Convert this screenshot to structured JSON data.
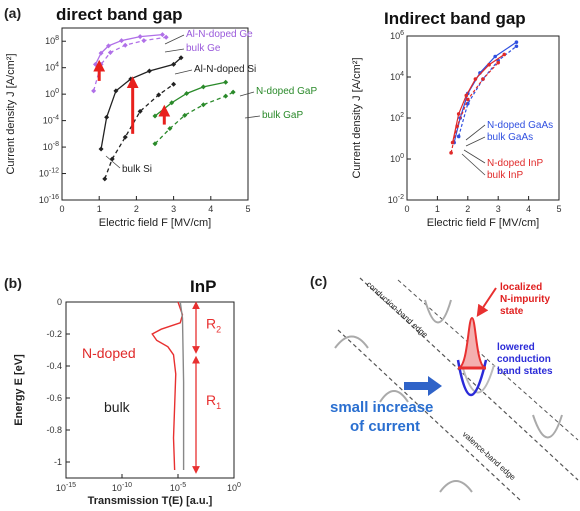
{
  "chart_data": [
    {
      "panel": "(a)",
      "title": "direct band gap",
      "type": "line",
      "xlabel": "Electric field F [MV/cm]",
      "ylabel": "Current density J [A/cm²]",
      "xlim": [
        0,
        5
      ],
      "ylim": [
        -16,
        10
      ],
      "yscale": "log",
      "xticks": [
        "0",
        "1",
        "2",
        "3",
        "4",
        "5"
      ],
      "yticks": [
        "10-16",
        "10-12",
        "10-8",
        "10-4",
        "100",
        "104",
        "108"
      ],
      "series": [
        {
          "name": "Al-N-doped Ge",
          "color": "#b070e8",
          "style": "solid",
          "x": [
            0.9,
            1.05,
            1.25,
            1.6,
            2.1,
            2.7
          ],
          "y": [
            4.5,
            6.2,
            7.3,
            8.1,
            8.7,
            9.0
          ]
        },
        {
          "name": "bulk Ge",
          "color": "#b070e8",
          "style": "dashed",
          "x": [
            0.85,
            1.05,
            1.3,
            1.7,
            2.2,
            2.8
          ],
          "y": [
            0.5,
            4.5,
            6.3,
            7.4,
            8.1,
            8.6
          ]
        },
        {
          "name": "Al-N-doped Si",
          "color": "#222222",
          "style": "solid",
          "x": [
            1.05,
            1.2,
            1.45,
            1.85,
            2.35,
            3.0,
            3.2
          ],
          "y": [
            -8.3,
            -3.5,
            0.5,
            2.3,
            3.5,
            4.5,
            5.5
          ]
        },
        {
          "name": "bulk Si",
          "color": "#222222",
          "style": "dashed",
          "x": [
            1.15,
            1.35,
            1.7,
            2.1,
            2.6,
            3.0
          ],
          "y": [
            -12.8,
            -9.8,
            -6.5,
            -2.6,
            -0.1,
            1.5
          ]
        },
        {
          "name": "N-doped GaP",
          "color": "#2a8a2a",
          "style": "solid",
          "x": [
            2.5,
            2.95,
            3.35,
            3.8,
            4.4
          ],
          "y": [
            -3.3,
            -1.3,
            0.1,
            1.1,
            1.8
          ]
        },
        {
          "name": "bulk GaP",
          "color": "#2a8a2a",
          "style": "dashed",
          "x": [
            2.5,
            2.9,
            3.3,
            3.8,
            4.4,
            4.6
          ],
          "y": [
            -7.5,
            -5.2,
            -3.2,
            -1.6,
            -0.3,
            0.3
          ]
        }
      ]
    },
    {
      "title": "Indirect band gap",
      "type": "line",
      "xlabel": "Electric field F [MV/cm]",
      "ylabel": "Current density J [A/cm²]",
      "xlim": [
        0,
        5
      ],
      "ylim": [
        -2,
        6
      ],
      "yscale": "log",
      "xticks": [
        "0",
        "1",
        "2",
        "3",
        "4",
        "5"
      ],
      "yticks": [
        "10-2",
        "100",
        "102",
        "104",
        "106"
      ],
      "series": [
        {
          "name": "N-doped GaAs",
          "color": "#2f4fe0",
          "style": "solid",
          "x": [
            1.55,
            1.75,
            2.0,
            2.4,
            2.9,
            3.6
          ],
          "y": [
            0.8,
            2.0,
            3.2,
            4.2,
            5.0,
            5.7
          ]
        },
        {
          "name": "bulk GaAs",
          "color": "#2f4fe0",
          "style": "dashed",
          "x": [
            1.7,
            2.0,
            2.5,
            3.0,
            3.6
          ],
          "y": [
            1.1,
            2.7,
            3.9,
            4.8,
            5.5
          ]
        },
        {
          "name": "N-doped InP",
          "color": "#e02a2a",
          "style": "solid",
          "x": [
            1.5,
            1.7,
            1.95,
            2.25,
            2.7,
            3.2
          ],
          "y": [
            0.8,
            2.2,
            3.1,
            3.9,
            4.6,
            5.1
          ]
        },
        {
          "name": "bulk InP",
          "color": "#e02a2a",
          "style": "dashed",
          "x": [
            1.45,
            1.65,
            2.0,
            2.5,
            3.0
          ],
          "y": [
            0.3,
            1.6,
            2.9,
            3.9,
            4.7
          ]
        }
      ]
    },
    {
      "panel": "(b)",
      "title": "InP",
      "type": "line",
      "xlabel": "Transmission T(E) [a.u.]",
      "ylabel": "Energy E [eV]",
      "xscale": "log",
      "xlim": [
        -15,
        0
      ],
      "ylim": [
        -1.1,
        0
      ],
      "xticks": [
        "10-15",
        "10-10",
        "10-5",
        "100"
      ],
      "yticks": [
        "0",
        "-0.2",
        "-0.4",
        "-0.6",
        "-0.8",
        "-1"
      ],
      "series": [
        {
          "name": "N-doped",
          "color": "#e83030",
          "x": [
            -5.0,
            -4.6,
            -4.8,
            -6.5,
            -7.3,
            -6.9,
            -5.9,
            -5.4,
            -5.2,
            -5.3,
            -5.4,
            -5.3
          ],
          "y": [
            0.0,
            -0.08,
            -0.13,
            -0.17,
            -0.2,
            -0.24,
            -0.28,
            -0.33,
            -0.45,
            -0.65,
            -0.85,
            -1.05
          ]
        },
        {
          "name": "bulk",
          "color": "#888888",
          "x": [
            -4.8,
            -4.6,
            -4.55,
            -4.5,
            -4.5,
            -4.5
          ],
          "y": [
            0.0,
            -0.1,
            -0.3,
            -0.5,
            -0.8,
            -1.05
          ]
        }
      ],
      "annotations": [
        "R2",
        "R1"
      ]
    }
  ],
  "annotations_a": {
    "label_al_ge": "Al-N-doped Ge",
    "label_bulk_ge": "bulk Ge",
    "label_al_si": "Al-N-doped Si",
    "label_bulk_si": "bulk Si",
    "label_n_gap": "N-doped GaP",
    "label_bulk_gap": "bulk GaP"
  },
  "annotations_indirect": {
    "label_n_gaas": "N-doped GaAs",
    "label_bulk_gaas": "bulk GaAs",
    "label_n_inp": "N-doped InP",
    "label_bulk_inp": "bulk InP"
  },
  "panel_b": {
    "label_ndoped": "N-doped",
    "label_bulk": "bulk",
    "r2": "R",
    "r2_sub": "2",
    "r1": "R",
    "r1_sub": "1"
  },
  "panel_c": {
    "letter": "(c)",
    "conduction_edge": "conduction-band edge",
    "valence_edge": "valence-band edge",
    "localized_line1": "localized",
    "localized_line2": "N-impurity",
    "localized_line3": "state",
    "lowered_line1": "lowered",
    "lowered_line2": "conduction",
    "lowered_line3": "band states",
    "small_increase_line1": "small increase",
    "small_increase_line2": "of current"
  },
  "colors": {
    "ge": "#b070e8",
    "si": "#222222",
    "gap": "#2a8a2a",
    "gaas": "#2f4fe0",
    "inp": "#e02a2a",
    "arrow_red": "#e8201c",
    "arrow_blue": "#2f63c8"
  }
}
